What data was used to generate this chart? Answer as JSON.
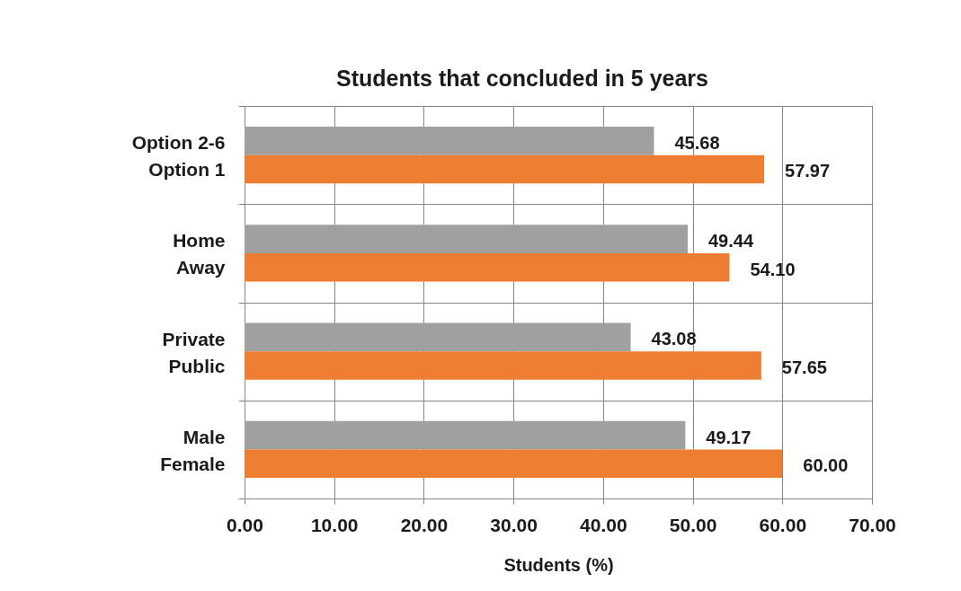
{
  "chart_data": {
    "type": "bar",
    "orientation": "horizontal",
    "title": "Students that concluded in 5 years",
    "xlabel": "Students (%)",
    "categories": [
      "Option 2-6\nOption 1",
      "Home\nAway",
      "Private\nPublic",
      "Male\nFemale"
    ],
    "series": [
      {
        "color": "#a0a0a0",
        "values": [
          45.68,
          49.44,
          43.08,
          49.17
        ],
        "value_labels": [
          "45.68",
          "49.44",
          "43.08",
          "49.17"
        ]
      },
      {
        "color": "#ed7d31",
        "values": [
          57.97,
          54.1,
          57.65,
          60.0
        ],
        "value_labels": [
          "57.97",
          "54.10",
          "57.65",
          "60.00"
        ]
      }
    ],
    "xlim": [
      0,
      70
    ],
    "xticks": [
      {
        "value": 0,
        "label": "0.00"
      },
      {
        "value": 10,
        "label": "10.00"
      },
      {
        "value": 20,
        "label": "20.00"
      },
      {
        "value": 30,
        "label": "30.00"
      },
      {
        "value": 40,
        "label": "40.00"
      },
      {
        "value": 50,
        "label": "50.00"
      },
      {
        "value": 60,
        "label": "60.00"
      },
      {
        "value": 70,
        "label": "70.00"
      }
    ],
    "grid": true
  }
}
